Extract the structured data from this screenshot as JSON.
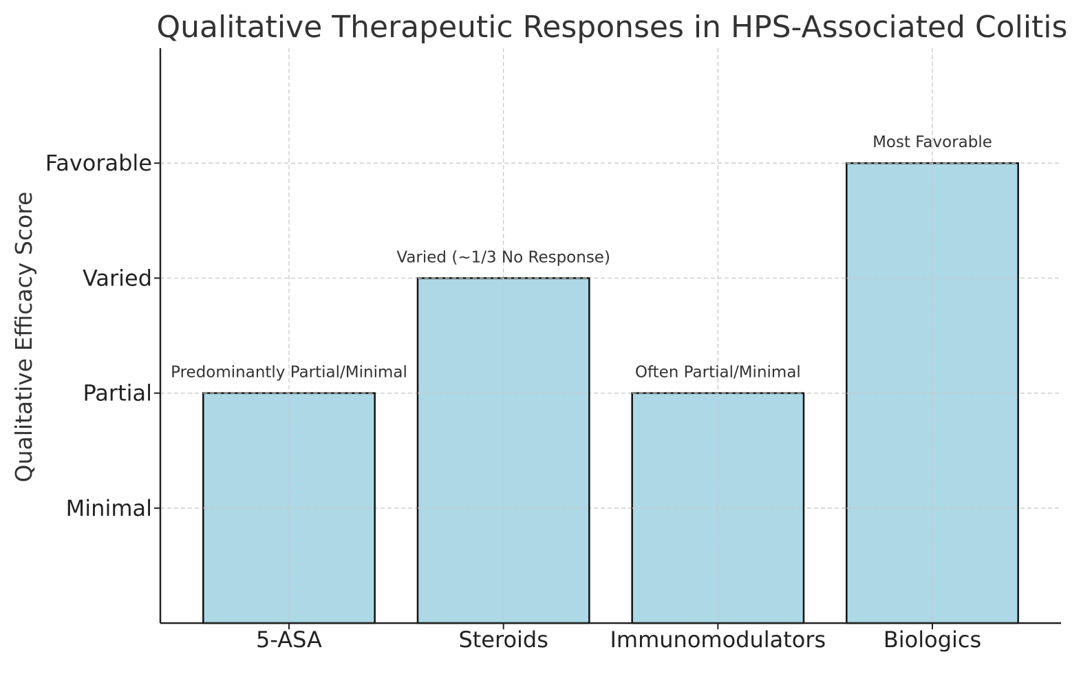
{
  "chart_data": {
    "type": "bar",
    "title": "Qualitative Therapeutic Responses in HPS-Associated Colitis",
    "xlabel": "",
    "ylabel": "Qualitative Efficacy Score",
    "categories": [
      "5-ASA",
      "Steroids",
      "Immunomodulators",
      "Biologics"
    ],
    "values": [
      2,
      3,
      2,
      4
    ],
    "data_labels": [
      "Predominantly Partial/Minimal",
      "Varied (~1/3 No Response)",
      "Often Partial/Minimal",
      "Most Favorable"
    ],
    "y_ticks": [
      1,
      2,
      3,
      4
    ],
    "y_tick_labels": [
      "Minimal",
      "Partial",
      "Varied",
      "Favorable"
    ],
    "ylim": [
      0,
      5
    ],
    "grid": true,
    "bar_color": "#add8e6",
    "bar_edge_color": "#111111"
  }
}
